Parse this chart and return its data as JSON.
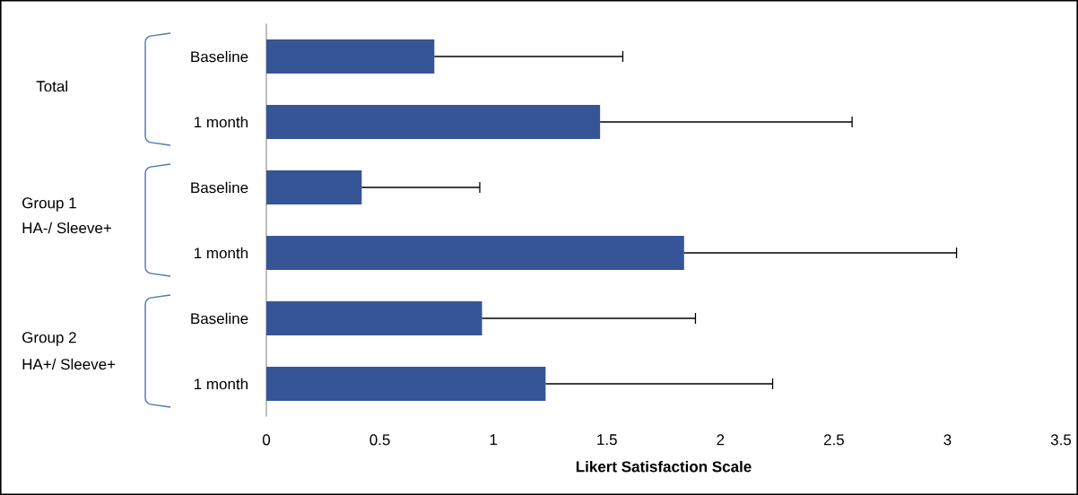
{
  "chart_data": {
    "type": "bar",
    "orientation": "horizontal",
    "xlabel": "Likert Satisfaction Scale",
    "categories": [
      "Baseline",
      "1 month",
      "Baseline",
      "1 month",
      "Baseline",
      "1 month"
    ],
    "values": [
      0.74,
      1.47,
      0.42,
      1.84,
      0.95,
      1.23
    ],
    "errors": [
      [
        0.74,
        1.57
      ],
      [
        1.47,
        2.58
      ],
      [
        0.42,
        0.94
      ],
      [
        1.84,
        3.04
      ],
      [
        0.95,
        1.89
      ],
      [
        1.23,
        2.23
      ]
    ],
    "color": "#365597",
    "xlim": [
      0,
      3.5
    ],
    "xticks": [
      0,
      0.5,
      1,
      1.5,
      2,
      2.5,
      3,
      3.5
    ],
    "annotations": [
      "Total",
      "Group 1",
      "HA-/ Sleeve+",
      "Group 2",
      "HA+/ Sleeve+"
    ],
    "grid": false
  }
}
